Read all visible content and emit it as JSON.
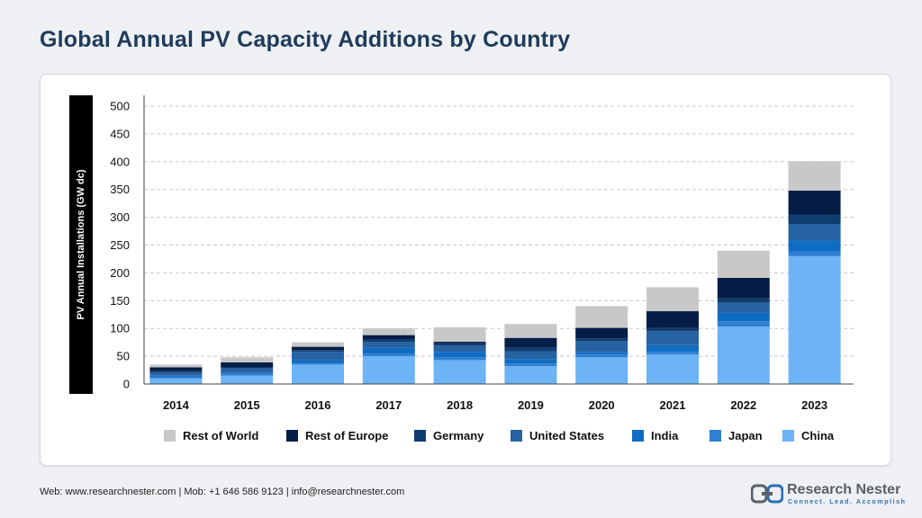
{
  "title": "Global Annual PV Capacity Additions by Country",
  "footer": {
    "text": "Web: www.researchnester.com  | Mob: +1 646 586 9123 | info@researchnester.com"
  },
  "logo": {
    "name": "Research Nester",
    "tagline": "Connect. Lead. Accomplish"
  },
  "chart_data": {
    "type": "bar",
    "stacked": true,
    "ylabel": "PV Annual Installations (GW dc)",
    "xlabel": "",
    "ylim": [
      0,
      500
    ],
    "yticks": [
      0,
      50,
      100,
      150,
      200,
      250,
      300,
      350,
      400,
      450,
      500
    ],
    "grid": true,
    "legend_position": "bottom",
    "categories": [
      "2014",
      "2015",
      "2016",
      "2017",
      "2018",
      "2019",
      "2020",
      "2021",
      "2022",
      "2023"
    ],
    "series": [
      {
        "name": "China",
        "color": "#6cb4f5",
        "values": [
          10,
          15,
          35,
          50,
          43,
          32,
          48,
          53,
          103,
          230
        ]
      },
      {
        "name": "Japan",
        "color": "#2f7fd2",
        "values": [
          3,
          3,
          3,
          5,
          5,
          5,
          5,
          5,
          10,
          8
        ]
      },
      {
        "name": "India",
        "color": "#0f6cc4",
        "values": [
          2,
          2,
          5,
          10,
          10,
          8,
          4,
          12,
          15,
          20
        ]
      },
      {
        "name": "United States",
        "color": "#2762a2",
        "values": [
          6,
          8,
          15,
          11,
          11,
          14,
          20,
          25,
          18,
          30
        ]
      },
      {
        "name": "Germany",
        "color": "#0f3d70",
        "values": [
          2,
          2,
          3,
          4,
          4,
          6,
          5,
          6,
          8,
          17
        ]
      },
      {
        "name": "Rest of Europe",
        "color": "#061d47",
        "values": [
          7,
          9,
          6,
          8,
          3,
          18,
          19,
          30,
          37,
          43
        ]
      },
      {
        "name": "Rest of World",
        "color": "#c8c8c8",
        "values": [
          5,
          9,
          8,
          12,
          26,
          25,
          39,
          43,
          49,
          53
        ]
      }
    ],
    "legend_order": [
      "Rest of World",
      "Rest of Europe",
      "Germany",
      "United States",
      "India",
      "Japan",
      "China"
    ]
  }
}
